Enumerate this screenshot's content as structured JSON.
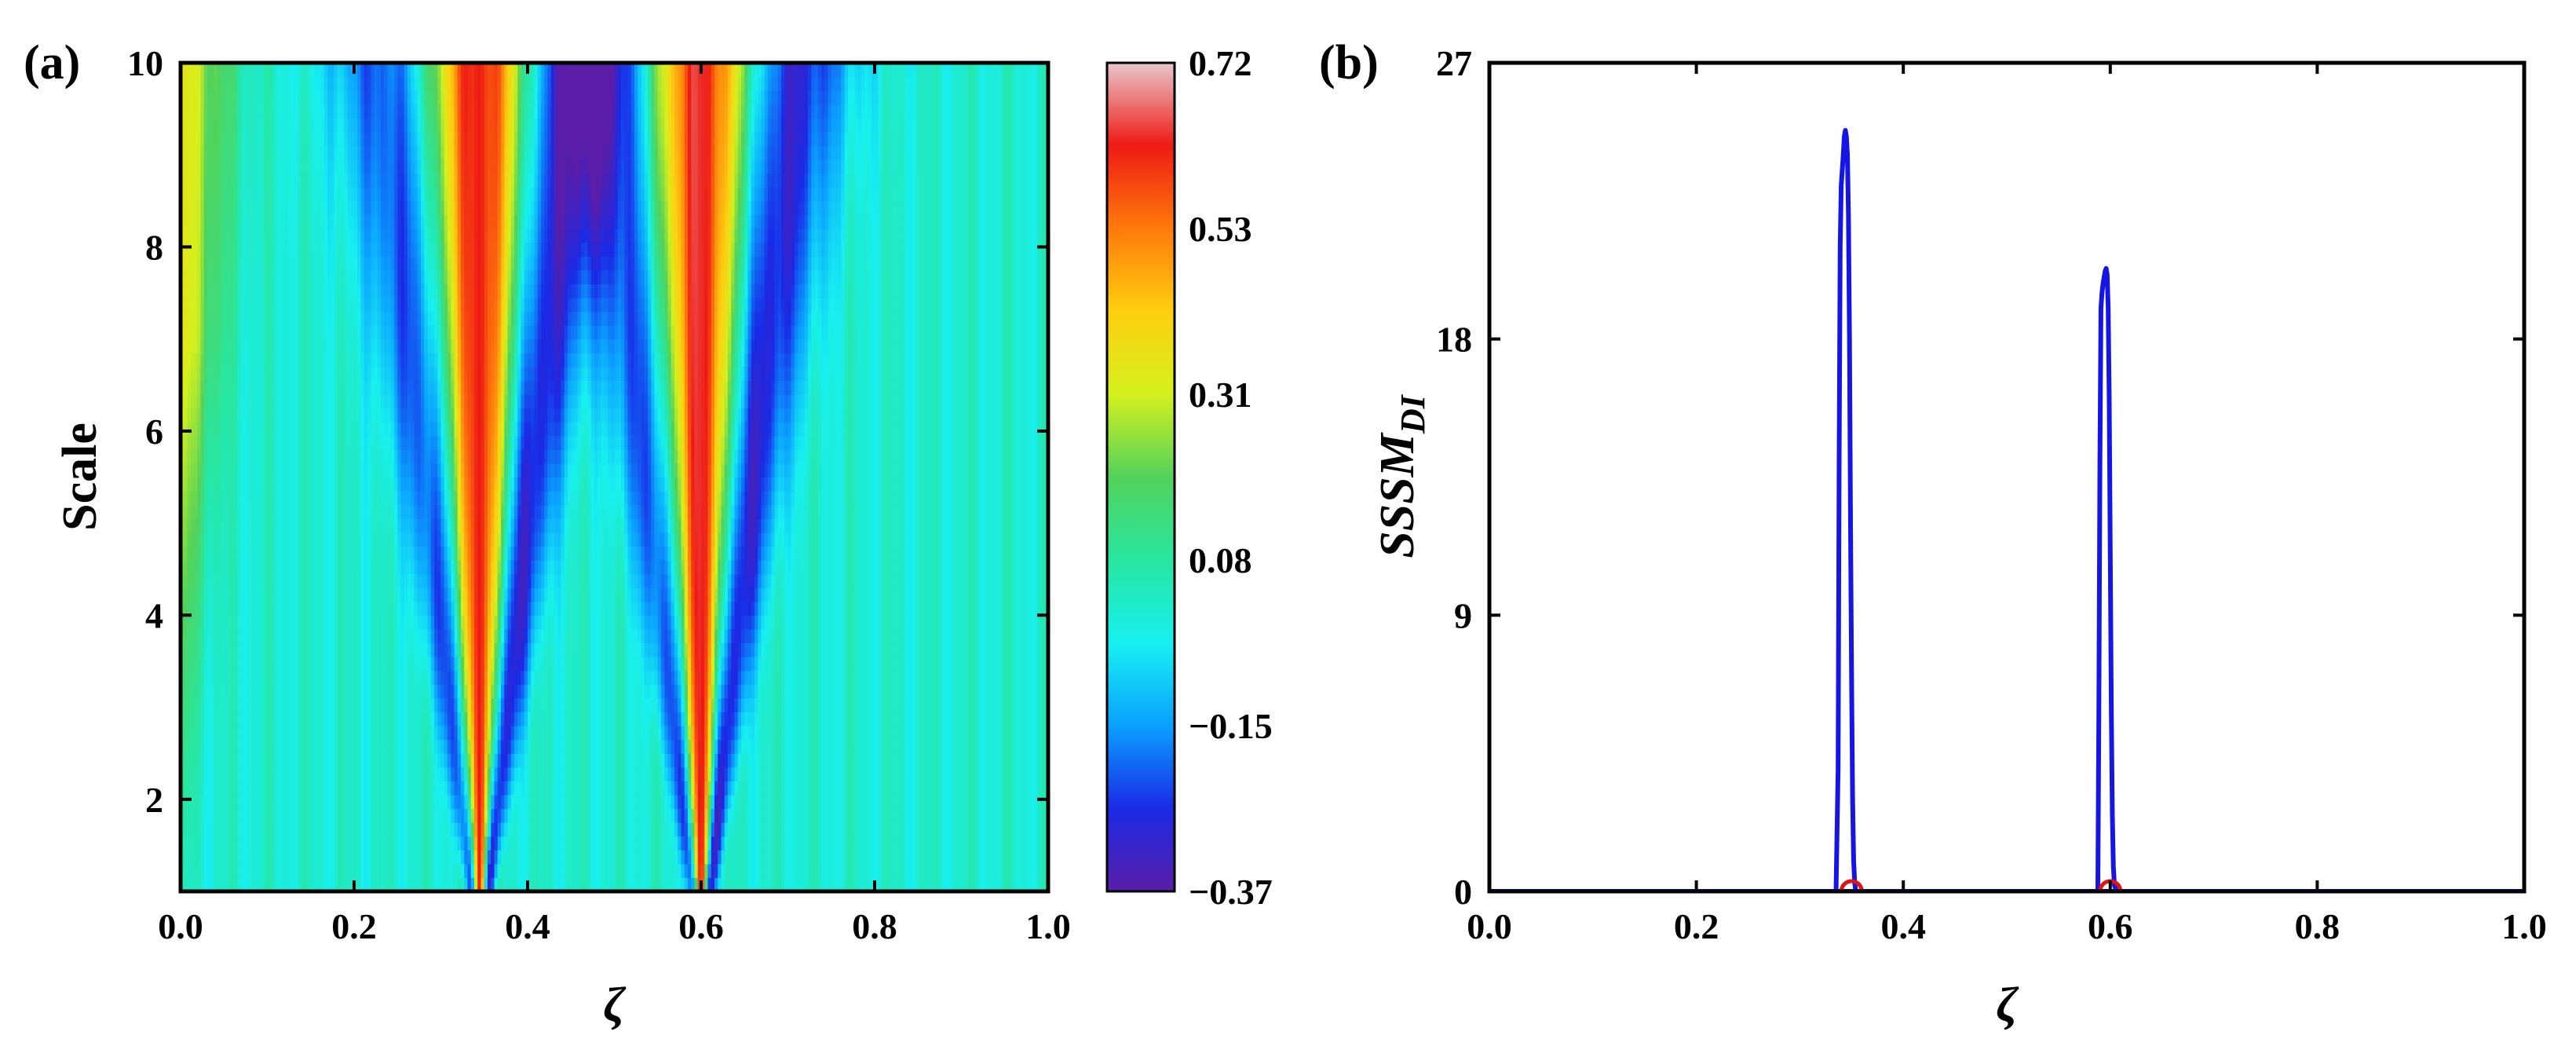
{
  "chart_data": [
    {
      "panel_label": "(a)",
      "type": "heatmap",
      "xlabel": "ζ",
      "ylabel": "Scale",
      "xlim": [
        0.0,
        1.0
      ],
      "ylim": [
        1,
        10
      ],
      "x_ticks": [
        "0.0",
        "0.2",
        "0.4",
        "0.6",
        "0.8",
        "1.0"
      ],
      "y_ticks": [
        "2",
        "4",
        "6",
        "8",
        "10"
      ],
      "colorbar": {
        "ticks": [
          "0.72",
          "0.53",
          "0.31",
          "0.08",
          "−0.15",
          "−0.37"
        ],
        "range": [
          -0.37,
          0.72
        ],
        "colormap": [
          "#5a1ea8",
          "#1a2ae6",
          "#0aa0ff",
          "#18f0f0",
          "#28e6a0",
          "#52d25a",
          "#d4f01e",
          "#ffcf10",
          "#ff7a0c",
          "#ee1a14",
          "#e8c6cc"
        ]
      },
      "features": [
        {
          "center": 0.345,
          "peak": 0.72,
          "trough": -0.37
        },
        {
          "center": 0.6,
          "peak": 0.72,
          "trough": -0.37
        }
      ],
      "background_value": 0.0
    },
    {
      "panel_label": "(b)",
      "type": "line",
      "xlabel": "ζ",
      "ylabel": "SSSM",
      "ylabel_subscript": "DI",
      "xlim": [
        0.0,
        1.0
      ],
      "ylim": [
        0,
        27
      ],
      "x_ticks": [
        "0.0",
        "0.2",
        "0.4",
        "0.6",
        "0.8",
        "1.0"
      ],
      "y_ticks": [
        "0",
        "9",
        "18",
        "27"
      ],
      "line_color": "#1515e6",
      "marker_color": "#e01414",
      "series": [
        {
          "x": [
            0.0,
            0.335,
            0.337,
            0.338,
            0.339,
            0.34,
            0.341,
            0.342,
            0.343,
            0.344,
            0.345,
            0.346,
            0.347,
            0.348,
            0.349,
            0.35,
            0.351,
            0.352,
            0.353,
            0.354,
            0.355,
            0.357,
            1.0
          ],
          "y": [
            0,
            0,
            4,
            14,
            21,
            23,
            23.5,
            24,
            24.6,
            24.8,
            24.6,
            24,
            22,
            18,
            12,
            7,
            3,
            1,
            0.3,
            0,
            0,
            0,
            0
          ]
        },
        {
          "x": [
            0.0,
            0.588,
            0.589,
            0.59,
            0.591,
            0.592,
            0.593,
            0.594,
            0.595,
            0.596,
            0.597,
            0.598,
            0.599,
            0.6,
            0.601,
            0.602,
            0.603,
            0.604,
            0.606,
            1.0
          ],
          "y": [
            0,
            0,
            6,
            14,
            19,
            19.5,
            19.8,
            20,
            20.2,
            20.3,
            20.1,
            19,
            16,
            11,
            6,
            2.5,
            0.8,
            0.2,
            0,
            0
          ]
        }
      ],
      "markers": [
        {
          "x": 0.35,
          "y": 0
        },
        {
          "x": 0.6,
          "y": 0
        }
      ]
    }
  ]
}
